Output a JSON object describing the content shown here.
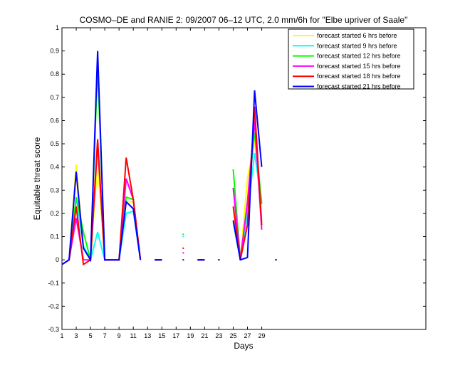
{
  "chart_data": {
    "type": "line",
    "title": "COSMO–DE and RANIE 2: 09/2007 06–12 UTC, 2.0 mm/6h for \"Elbe upriver of Saale\"",
    "xlabel": "Days",
    "ylabel": "Equitable threat score",
    "xlim": [
      1,
      52
    ],
    "ylim": [
      -0.3,
      1
    ],
    "xticks": [
      1,
      3,
      5,
      7,
      9,
      11,
      13,
      15,
      17,
      19,
      21,
      23,
      25,
      27,
      29
    ],
    "yticks": [
      -0.3,
      -0.2,
      -0.1,
      0,
      0.1,
      0.2,
      0.3,
      0.4,
      0.5,
      0.6,
      0.7,
      0.8,
      0.9,
      1
    ],
    "grid": false,
    "legend_position": "top-right",
    "series": [
      {
        "name": "forecast started 6 hrs before",
        "color": "#ffff00",
        "points": [
          [
            1,
            -0.02
          ],
          [
            2,
            0.0
          ],
          [
            3,
            0.41
          ],
          [
            4,
            0.05
          ],
          [
            5,
            0.0
          ],
          [
            6,
            0.42
          ],
          [
            7,
            0.0
          ],
          [
            8,
            0.0
          ],
          [
            9,
            0.0
          ],
          [
            10,
            0.25
          ],
          [
            11,
            0.25
          ],
          [
            12,
            0.0
          ],
          [
            null,
            null
          ],
          [
            14,
            0.0
          ],
          [
            15,
            0.0
          ],
          [
            null,
            null
          ],
          [
            18,
            0.0
          ],
          [
            null,
            null
          ],
          [
            20,
            0.0
          ],
          [
            21,
            0.0
          ],
          [
            null,
            null
          ],
          [
            23,
            0.0
          ],
          [
            null,
            null
          ],
          [
            25,
            0.22
          ],
          [
            26,
            0.0
          ],
          [
            27,
            0.35
          ],
          [
            28,
            0.52
          ],
          [
            29,
            0.17
          ],
          [
            null,
            null
          ],
          [
            31,
            0.0
          ]
        ]
      },
      {
        "name": "forecast started 9 hrs before",
        "color": "#00ffff",
        "points": [
          [
            1,
            -0.02
          ],
          [
            2,
            0.0
          ],
          [
            3,
            0.27
          ],
          [
            4,
            0.06
          ],
          [
            5,
            0.0
          ],
          [
            6,
            0.12
          ],
          [
            7,
            0.0
          ],
          [
            8,
            0.0
          ],
          [
            9,
            0.0
          ],
          [
            10,
            0.2
          ],
          [
            11,
            0.21
          ],
          [
            12,
            0.0
          ],
          [
            null,
            null
          ],
          [
            14,
            0.0
          ],
          [
            15,
            0.0
          ],
          [
            null,
            null
          ],
          [
            18,
            0.1
          ],
          [
            null,
            null
          ],
          [
            20,
            0.0
          ],
          [
            21,
            0.0
          ],
          [
            null,
            null
          ],
          [
            23,
            0.0
          ],
          [
            null,
            null
          ],
          [
            25,
            0.16
          ],
          [
            26,
            0.0
          ],
          [
            27,
            0.2
          ],
          [
            28,
            0.46
          ],
          [
            29,
            0.25
          ],
          [
            null,
            null
          ],
          [
            31,
            0.0
          ]
        ]
      },
      {
        "name": "forecast started 12 hrs before",
        "color": "#00ff00",
        "points": [
          [
            1,
            -0.02
          ],
          [
            2,
            0.0
          ],
          [
            3,
            0.27
          ],
          [
            4,
            0.12
          ],
          [
            5,
            0.0
          ],
          [
            6,
            0.84
          ],
          [
            7,
            0.0
          ],
          [
            8,
            0.0
          ],
          [
            9,
            0.0
          ],
          [
            10,
            0.27
          ],
          [
            11,
            0.26
          ],
          [
            12,
            0.0
          ],
          [
            null,
            null
          ],
          [
            14,
            0.0
          ],
          [
            15,
            0.0
          ],
          [
            null,
            null
          ],
          [
            18,
            0.11
          ],
          [
            null,
            null
          ],
          [
            20,
            0.0
          ],
          [
            21,
            0.0
          ],
          [
            null,
            null
          ],
          [
            23,
            0.0
          ],
          [
            null,
            null
          ],
          [
            25,
            0.39
          ],
          [
            26,
            0.0
          ],
          [
            27,
            0.25
          ],
          [
            28,
            0.55
          ],
          [
            29,
            0.24
          ],
          [
            null,
            null
          ],
          [
            31,
            0.0
          ]
        ]
      },
      {
        "name": "forecast started 15 hrs before",
        "color": "#ff00ff",
        "points": [
          [
            1,
            -0.02
          ],
          [
            2,
            0.0
          ],
          [
            3,
            0.18
          ],
          [
            4,
            0.0
          ],
          [
            5,
            0.0
          ],
          [
            6,
            0.5
          ],
          [
            7,
            0.0
          ],
          [
            8,
            0.0
          ],
          [
            9,
            0.0
          ],
          [
            10,
            0.35
          ],
          [
            11,
            0.26
          ],
          [
            12,
            0.0
          ],
          [
            null,
            null
          ],
          [
            14,
            0.0
          ],
          [
            15,
            0.0
          ],
          [
            null,
            null
          ],
          [
            18,
            0.03
          ],
          [
            null,
            null
          ],
          [
            20,
            0.0
          ],
          [
            21,
            0.0
          ],
          [
            null,
            null
          ],
          [
            23,
            0.0
          ],
          [
            null,
            null
          ],
          [
            25,
            0.31
          ],
          [
            26,
            0.0
          ],
          [
            27,
            0.25
          ],
          [
            28,
            0.6
          ],
          [
            29,
            0.13
          ],
          [
            null,
            null
          ],
          [
            31,
            0.0
          ]
        ]
      },
      {
        "name": "forecast started 18 hrs before",
        "color": "#ff0000",
        "points": [
          [
            1,
            -0.02
          ],
          [
            2,
            0.0
          ],
          [
            3,
            0.23
          ],
          [
            4,
            -0.02
          ],
          [
            5,
            0.0
          ],
          [
            6,
            0.52
          ],
          [
            7,
            0.0
          ],
          [
            8,
            0.0
          ],
          [
            9,
            0.0
          ],
          [
            10,
            0.44
          ],
          [
            11,
            0.26
          ],
          [
            12,
            0.0
          ],
          [
            null,
            null
          ],
          [
            14,
            0.0
          ],
          [
            15,
            0.0
          ],
          [
            null,
            null
          ],
          [
            18,
            0.05
          ],
          [
            null,
            null
          ],
          [
            20,
            0.0
          ],
          [
            21,
            0.0
          ],
          [
            null,
            null
          ],
          [
            23,
            0.0
          ],
          [
            null,
            null
          ],
          [
            25,
            0.23
          ],
          [
            26,
            0.0
          ],
          [
            27,
            0.15
          ],
          [
            28,
            0.66
          ],
          [
            29,
            0.15
          ],
          [
            null,
            null
          ],
          [
            31,
            0.0
          ]
        ]
      },
      {
        "name": "forecast started 21 hrs before",
        "color": "#0000ff",
        "points": [
          [
            1,
            -0.02
          ],
          [
            2,
            0.0
          ],
          [
            3,
            0.38
          ],
          [
            4,
            0.05
          ],
          [
            5,
            0.0
          ],
          [
            6,
            0.9
          ],
          [
            7,
            0.0
          ],
          [
            8,
            0.0
          ],
          [
            9,
            0.0
          ],
          [
            10,
            0.25
          ],
          [
            11,
            0.22
          ],
          [
            12,
            0.0
          ],
          [
            null,
            null
          ],
          [
            14,
            0.0
          ],
          [
            15,
            0.0
          ],
          [
            null,
            null
          ],
          [
            18,
            0.0
          ],
          [
            null,
            null
          ],
          [
            20,
            0.0
          ],
          [
            21,
            0.0
          ],
          [
            null,
            null
          ],
          [
            23,
            0.0
          ],
          [
            null,
            null
          ],
          [
            25,
            0.17
          ],
          [
            26,
            0.0
          ],
          [
            27,
            0.01
          ],
          [
            28,
            0.73
          ],
          [
            29,
            0.4
          ],
          [
            null,
            null
          ],
          [
            31,
            0.0
          ]
        ]
      }
    ]
  }
}
